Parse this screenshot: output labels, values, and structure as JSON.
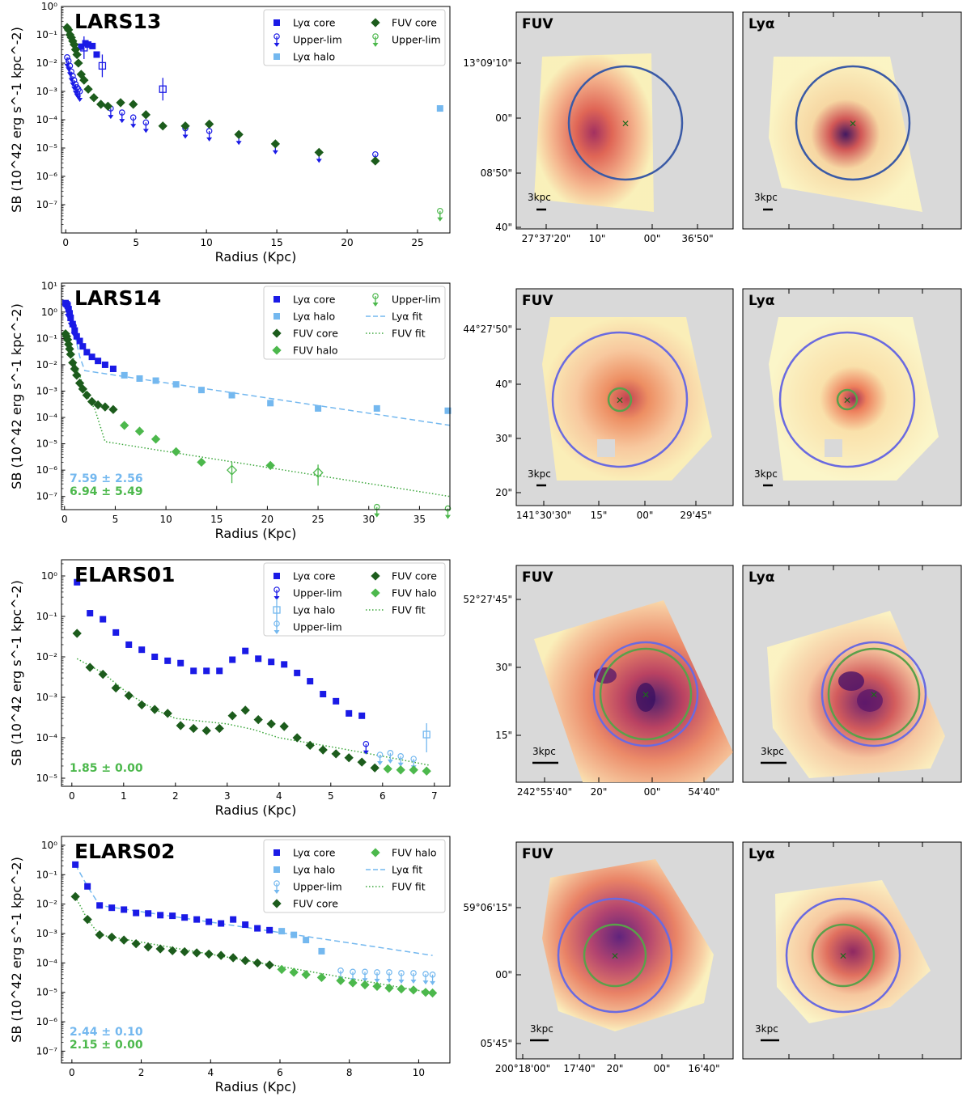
{
  "chart_data": [
    {
      "type": "scatter",
      "title": "LARS13",
      "xlabel": "Radius (Kpc)",
      "ylabel": "SB (10^42 erg s^-1 kpc^-2)",
      "xlim": [
        -0.3,
        27.3
      ],
      "ylog": [
        -8,
        0
      ],
      "xticks": [
        0,
        5,
        10,
        15,
        20,
        25
      ],
      "yticks": [
        0,
        -1,
        -2,
        -3,
        -4,
        -5,
        -6,
        -7
      ],
      "legend": [
        {
          "label": "Lyα core",
          "style": "lya_core"
        },
        {
          "label": "Upper-lim",
          "style": "lya_ul"
        },
        {
          "label": "Lyα halo",
          "style": "lya_halo"
        },
        {
          "label": "FUV core",
          "style": "fuv_core"
        },
        {
          "label": "Upper-lim",
          "style": "fuv_ul"
        }
      ],
      "series": [
        {
          "name": "Lyα core",
          "style": "lya_core",
          "x": [
            1.1,
            1.4,
            1.6,
            1.9,
            2.2
          ],
          "y": [
            0.038,
            0.05,
            0.045,
            0.04,
            0.02
          ]
        },
        {
          "name": "Lyα core (open)",
          "style": "lya_core_open",
          "x": [
            1.3,
            2.6,
            6.9
          ],
          "y": [
            0.035,
            0.008,
            0.0012
          ]
        },
        {
          "name": "Lyα upper-lim",
          "style": "lya_ul",
          "x": [
            0.1,
            0.2,
            0.3,
            0.4,
            0.5,
            0.6,
            0.7,
            0.8,
            0.9,
            1.0,
            3.2,
            4.0,
            4.8,
            5.7,
            8.5,
            10.2,
            12.3,
            14.9,
            18.0,
            22.0
          ],
          "y": [
            0.016,
            0.012,
            0.008,
            0.005,
            0.0035,
            0.0025,
            0.0018,
            0.0014,
            0.0012,
            0.001,
            0.00025,
            0.00018,
            0.00012,
            8e-05,
            5e-05,
            4e-05,
            3e-05,
            1.4e-05,
            7e-06,
            6e-06
          ]
        },
        {
          "name": "Lyα halo",
          "style": "lya_halo",
          "x": [
            26.6
          ],
          "y": [
            0.00025
          ]
        },
        {
          "name": "FUV core",
          "style": "fuv_core",
          "x": [
            0.1,
            0.2,
            0.3,
            0.4,
            0.5,
            0.6,
            0.7,
            0.8,
            0.9,
            1.1,
            1.3,
            1.6,
            2.0,
            2.5,
            3.0,
            3.9,
            4.8,
            5.7,
            6.9,
            8.5,
            10.2,
            12.3,
            14.9,
            18.0,
            22.0
          ],
          "y": [
            0.18,
            0.15,
            0.1,
            0.08,
            0.06,
            0.045,
            0.03,
            0.02,
            0.01,
            0.004,
            0.0025,
            0.0012,
            0.0006,
            0.00035,
            0.0003,
            0.0004,
            0.00035,
            0.00015,
            6e-05,
            6e-05,
            7e-05,
            3e-05,
            1.4e-05,
            7e-06,
            3.5e-06
          ]
        },
        {
          "name": "FUV upper-lim",
          "style": "fuv_ul",
          "x": [
            26.6
          ],
          "y": [
            6e-08
          ]
        }
      ],
      "annotations": []
    },
    {
      "type": "scatter",
      "title": "LARS14",
      "xlabel": "Radius (Kpc)",
      "ylabel": "SB (10^42 erg s^-1 kpc^-2)",
      "xlim": [
        -0.3,
        38
      ],
      "ylog": [
        -7.5,
        1.1
      ],
      "xticks": [
        0,
        5,
        10,
        15,
        20,
        25,
        30,
        35
      ],
      "yticks": [
        1,
        0,
        -1,
        -2,
        -3,
        -4,
        -5,
        -6,
        -7
      ],
      "legend": [
        {
          "label": "Lyα core",
          "style": "lya_core"
        },
        {
          "label": "Lyα halo",
          "style": "lya_halo"
        },
        {
          "label": "FUV core",
          "style": "fuv_core"
        },
        {
          "label": "FUV halo",
          "style": "fuv_halo"
        },
        {
          "label": "Upper-lim",
          "style": "fuv_ul"
        },
        {
          "label": "Lyα fit",
          "style": "lya_fit"
        },
        {
          "label": "FUV fit",
          "style": "fuv_fit"
        }
      ],
      "series": [
        {
          "name": "Lyα core",
          "style": "lya_core",
          "x": [
            0.1,
            0.2,
            0.3,
            0.4,
            0.5,
            0.6,
            0.8,
            1.0,
            1.2,
            1.5,
            1.8,
            2.2,
            2.7,
            3.3,
            4.0,
            4.8
          ],
          "y": [
            2.2,
            2.0,
            1.8,
            1.3,
            0.9,
            0.6,
            0.35,
            0.2,
            0.12,
            0.08,
            0.05,
            0.03,
            0.02,
            0.014,
            0.01,
            0.007
          ]
        },
        {
          "name": "Lyα upper-lim",
          "style": "lya_ul",
          "x": [
            0.3,
            0.6,
            0.9
          ],
          "y": [
            1.5,
            0.7,
            0.3
          ]
        },
        {
          "name": "Lyα halo",
          "style": "lya_halo",
          "x": [
            5.9,
            7.4,
            9.0,
            11.0,
            13.5,
            16.5,
            20.3,
            25.0,
            30.8,
            37.8
          ],
          "y": [
            0.004,
            0.003,
            0.0025,
            0.0018,
            0.0011,
            0.0007,
            0.00035,
            0.00022,
            0.00022,
            0.00018
          ]
        },
        {
          "name": "FUV core",
          "style": "fuv_core",
          "x": [
            0.1,
            0.2,
            0.3,
            0.4,
            0.5,
            0.6,
            0.8,
            1.0,
            1.2,
            1.5,
            1.8,
            2.2,
            2.7,
            3.3,
            4.0,
            4.8
          ],
          "y": [
            0.15,
            0.12,
            0.09,
            0.06,
            0.04,
            0.025,
            0.012,
            0.007,
            0.004,
            0.002,
            0.0012,
            0.0007,
            0.0004,
            0.0003,
            0.00025,
            0.0002
          ]
        },
        {
          "name": "FUV halo",
          "style": "fuv_halo",
          "x": [
            5.9,
            7.4,
            9.0,
            11.0,
            13.5,
            20.3
          ],
          "y": [
            5e-05,
            3e-05,
            1.5e-05,
            5e-06,
            2e-06,
            1.5e-06
          ]
        },
        {
          "name": "FUV halo (open)",
          "style": "fuv_halo_open",
          "x": [
            16.5,
            25.0
          ],
          "y": [
            1e-06,
            8e-07
          ]
        },
        {
          "name": "FUV upper-lim",
          "style": "fuv_ul",
          "x": [
            30.8,
            37.8
          ],
          "y": [
            4e-08,
            3.5e-08
          ]
        },
        {
          "name": "Lyα fit",
          "style": "lya_fit",
          "x": [
            0,
            0.3,
            0.6,
            1.0,
            1.5,
            2.0,
            38
          ],
          "y": [
            2.5,
            1.5,
            0.6,
            0.15,
            0.02,
            0.006,
            5e-05
          ]
        },
        {
          "name": "FUV fit",
          "style": "fuv_fit",
          "x": [
            0,
            0.5,
            1.0,
            1.5,
            2.0,
            3.0,
            4.0,
            38
          ],
          "y": [
            0.15,
            0.05,
            0.012,
            0.004,
            0.001,
            0.0002,
            1.2e-05,
            1e-07
          ]
        }
      ],
      "annotations": [
        {
          "text": "7.59 ± 2.56",
          "color": "lya_halo"
        },
        {
          "text": "6.94 ± 5.49",
          "color": "fuv_halo"
        }
      ]
    },
    {
      "type": "scatter",
      "title": "ELARS01",
      "xlabel": "Radius (Kpc)",
      "ylabel": "SB (10^42 erg s^-1 kpc^-2)",
      "xlim": [
        -0.2,
        7.3
      ],
      "ylog": [
        -5.2,
        0.4
      ],
      "xticks": [
        0,
        1,
        2,
        3,
        4,
        5,
        6,
        7
      ],
      "yticks": [
        0,
        -1,
        -2,
        -3,
        -4,
        -5
      ],
      "legend": [
        {
          "label": "Lyα core",
          "style": "lya_core"
        },
        {
          "label": "Upper-lim",
          "style": "lya_ul"
        },
        {
          "label": "Lyα halo",
          "style": "lya_halo_open"
        },
        {
          "label": "Upper-lim",
          "style": "lya_halo_ul"
        },
        {
          "label": "FUV core",
          "style": "fuv_core"
        },
        {
          "label": "FUV halo",
          "style": "fuv_halo"
        },
        {
          "label": "FUV fit",
          "style": "fuv_fit"
        }
      ],
      "series": [
        {
          "name": "Lyα core",
          "style": "lya_core",
          "x": [
            0.1,
            0.35,
            0.6,
            0.85,
            1.1,
            1.35,
            1.6,
            1.85,
            2.1,
            2.35,
            2.6,
            2.85,
            3.1,
            3.35,
            3.6,
            3.85,
            4.1,
            4.35,
            4.6,
            4.85,
            5.1,
            5.35,
            5.6
          ],
          "y": [
            0.7,
            0.12,
            0.085,
            0.04,
            0.02,
            0.015,
            0.01,
            0.008,
            0.007,
            0.0045,
            0.0045,
            0.0045,
            0.0085,
            0.014,
            0.009,
            0.0075,
            0.0065,
            0.004,
            0.0025,
            0.0012,
            0.0008,
            0.0004,
            0.00035
          ]
        },
        {
          "name": "Lyα upper-lim",
          "style": "lya_ul",
          "x": [
            5.68
          ],
          "y": [
            7e-05
          ]
        },
        {
          "name": "Lyα halo upper-lim",
          "style": "lya_halo_ul",
          "x": [
            5.95,
            6.15,
            6.35,
            6.6
          ],
          "y": [
            3.8e-05,
            4.2e-05,
            3.5e-05,
            3e-05
          ]
        },
        {
          "name": "Lyα halo",
          "style": "lya_halo_open",
          "x": [
            6.85
          ],
          "y": [
            0.00012
          ]
        },
        {
          "name": "FUV core",
          "style": "fuv_core",
          "x": [
            0.1,
            0.35,
            0.6,
            0.85,
            1.1,
            1.35,
            1.6,
            1.85,
            2.1,
            2.35,
            2.6,
            2.85,
            3.1,
            3.35,
            3.6,
            3.85,
            4.1,
            4.35,
            4.6,
            4.85,
            5.1,
            5.35,
            5.6,
            5.85
          ],
          "y": [
            0.038,
            0.0055,
            0.0037,
            0.0017,
            0.0011,
            0.00065,
            0.0005,
            0.0004,
            0.0002,
            0.00017,
            0.00015,
            0.00017,
            0.00035,
            0.00048,
            0.00028,
            0.00022,
            0.00019,
            0.0001,
            6.5e-05,
            5e-05,
            4e-05,
            3.2e-05,
            2.5e-05,
            1.8e-05
          ]
        },
        {
          "name": "FUV halo",
          "style": "fuv_halo",
          "x": [
            6.1,
            6.35,
            6.6,
            6.85
          ],
          "y": [
            1.7e-05,
            1.6e-05,
            1.6e-05,
            1.5e-05
          ]
        },
        {
          "name": "FUV fit",
          "style": "fuv_fit",
          "x": [
            0.1,
            0.6,
            1.1,
            1.6,
            2.0,
            3.0,
            3.5,
            4.0,
            5.0,
            6.0,
            6.9
          ],
          "y": [
            0.009,
            0.004,
            0.0012,
            0.0005,
            0.0003,
            0.00022,
            0.00016,
            0.0001,
            6e-05,
            3.5e-05,
            2.1e-05
          ]
        }
      ],
      "annotations": [
        {
          "text": "1.85 ± 0.00",
          "color": "fuv_halo"
        }
      ]
    },
    {
      "type": "scatter",
      "title": "ELARS02",
      "xlabel": "Radius (Kpc)",
      "ylabel": "SB (10^42 erg s^-1 kpc^-2)",
      "xlim": [
        -0.3,
        10.9
      ],
      "ylog": [
        -7.4,
        0.3
      ],
      "xticks": [
        0,
        2,
        4,
        6,
        8,
        10
      ],
      "yticks": [
        0,
        -1,
        -2,
        -3,
        -4,
        -5,
        -6,
        -7
      ],
      "legend": [
        {
          "label": "Lyα core",
          "style": "lya_core"
        },
        {
          "label": "Lyα halo",
          "style": "lya_halo"
        },
        {
          "label": "Upper-lim",
          "style": "lya_halo_ul"
        },
        {
          "label": "FUV core",
          "style": "fuv_core"
        },
        {
          "label": "FUV halo",
          "style": "fuv_halo"
        },
        {
          "label": "Lyα fit",
          "style": "lya_fit"
        },
        {
          "label": "FUV fit",
          "style": "fuv_fit"
        }
      ],
      "series": [
        {
          "name": "Lyα core",
          "style": "lya_core",
          "x": [
            0.1,
            0.45,
            0.8,
            1.15,
            1.5,
            1.85,
            2.2,
            2.55,
            2.9,
            3.25,
            3.6,
            3.95,
            4.3,
            4.65,
            5.0,
            5.35,
            5.7
          ],
          "y": [
            0.22,
            0.04,
            0.009,
            0.0075,
            0.0065,
            0.005,
            0.0048,
            0.0042,
            0.004,
            0.0035,
            0.003,
            0.0025,
            0.0022,
            0.003,
            0.002,
            0.0015,
            0.0013
          ]
        },
        {
          "name": "Lyα halo",
          "style": "lya_halo",
          "x": [
            6.05,
            6.4,
            6.75,
            7.2
          ],
          "y": [
            0.0012,
            0.0009,
            0.0006,
            0.00025
          ]
        },
        {
          "name": "Lyα halo upper-lim",
          "style": "lya_halo_ul",
          "x": [
            7.75,
            8.1,
            8.45,
            8.8,
            9.15,
            9.5,
            9.85,
            10.2,
            10.4
          ],
          "y": [
            5.5e-05,
            5e-05,
            5e-05,
            4.8e-05,
            4.8e-05,
            4.5e-05,
            4.5e-05,
            4.2e-05,
            4e-05
          ]
        },
        {
          "name": "FUV core",
          "style": "fuv_core",
          "x": [
            0.1,
            0.45,
            0.8,
            1.15,
            1.5,
            1.85,
            2.2,
            2.55,
            2.9,
            3.25,
            3.6,
            3.95,
            4.3,
            4.65,
            5.0,
            5.35,
            5.7
          ],
          "y": [
            0.018,
            0.003,
            0.0009,
            0.00075,
            0.0006,
            0.00045,
            0.00035,
            0.0003,
            0.00026,
            0.00024,
            0.00022,
            0.0002,
            0.00018,
            0.00015,
            0.00012,
            0.0001,
            8.5e-05
          ]
        },
        {
          "name": "FUV halo",
          "style": "fuv_halo",
          "x": [
            6.05,
            6.4,
            6.75,
            7.2,
            7.75,
            8.1,
            8.45,
            8.8,
            9.15,
            9.5,
            9.85,
            10.2,
            10.4
          ],
          "y": [
            6e-05,
            4.8e-05,
            4e-05,
            3.2e-05,
            2.5e-05,
            2.1e-05,
            1.8e-05,
            1.6e-05,
            1.4e-05,
            1.3e-05,
            1.2e-05,
            1e-05,
            9.5e-06
          ]
        },
        {
          "name": "Lyα fit",
          "style": "lya_fit",
          "x": [
            0.1,
            0.45,
            0.8,
            10.4
          ],
          "y": [
            0.22,
            0.04,
            0.009,
            0.00018
          ]
        },
        {
          "name": "FUV fit",
          "style": "fuv_fit",
          "x": [
            0.1,
            0.45,
            0.8,
            10.4
          ],
          "y": [
            0.018,
            0.003,
            0.0009,
            9.5e-06
          ]
        }
      ],
      "annotations": [
        {
          "text": "2.44 ± 0.10",
          "color": "lya_halo"
        },
        {
          "text": "2.15 ± 0.00",
          "color": "fuv_halo"
        }
      ]
    }
  ],
  "colors": {
    "lya_core": "#1a1ae6",
    "lya_halo": "#74b8ef",
    "fuv_core": "#1c5c1c",
    "fuv_halo": "#4cb84c",
    "lya_fit": "#74b8ef",
    "fuv_fit": "#3aa63a",
    "map_bg": "#d9d9d9",
    "aperture_outer": "#6a6ae0",
    "aperture_inner": "#5aa04a"
  },
  "maps": [
    {
      "panels": [
        "FUV",
        "Lyα"
      ],
      "dec_ticks": [
        "13°09'10\"",
        "00\"",
        "08'50\"",
        "40\""
      ],
      "ra_ticks": [
        "27°37'20\"",
        "10\"",
        "00\"",
        "36'50\""
      ],
      "scale_label": "3kpc"
    },
    {
      "panels": [
        "FUV",
        "Lyα"
      ],
      "dec_ticks": [
        "44°27'50\"",
        "40\"",
        "30\"",
        "20\""
      ],
      "ra_ticks": [
        "141°30'30\"",
        "15\"",
        "00\"",
        "29'45\""
      ],
      "scale_label": "3kpc"
    },
    {
      "panels": [
        "FUV",
        "Lyα"
      ],
      "dec_ticks": [
        "52°27'45\"",
        "30\"",
        "15\""
      ],
      "ra_ticks": [
        "242°55'40\"",
        "20\"",
        "00\"",
        "54'40\""
      ],
      "scale_label": "3kpc"
    },
    {
      "panels": [
        "FUV",
        "Lyα"
      ],
      "dec_ticks": [
        "59°06'15\"",
        "00\"",
        "05'45\""
      ],
      "ra_ticks": [
        "200°18'00\"",
        "17'40\"",
        "20\"",
        "00\"",
        "16'40\""
      ],
      "scale_label": "3kpc"
    }
  ]
}
